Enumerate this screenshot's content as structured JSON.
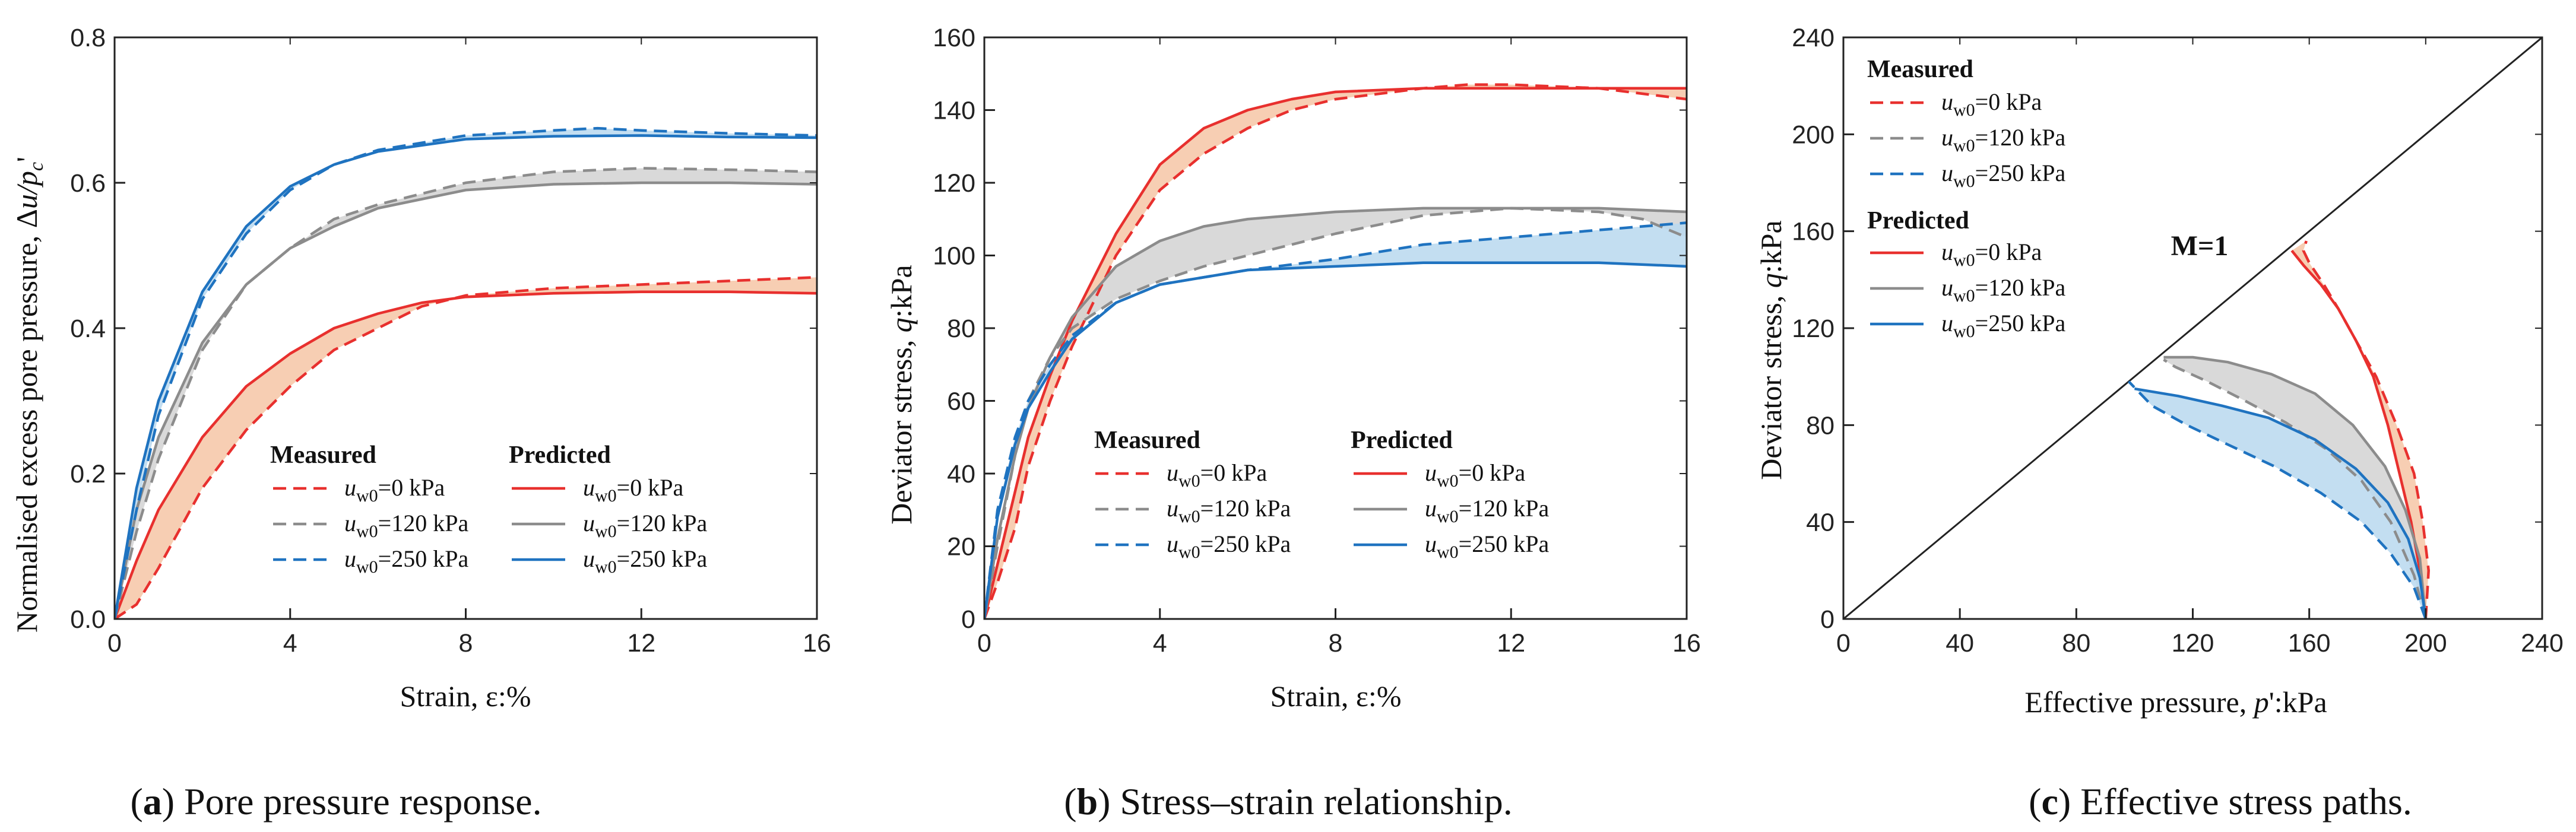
{
  "figure": {
    "colors": {
      "red": "#e8302e",
      "gray": "#8c8c8c",
      "blue": "#1f73c0",
      "redFill": "#f6c6a6",
      "grayFill": "#d2d2d2",
      "blueFill": "#b9d8ee"
    },
    "panels": [
      {
        "id": "a",
        "caption_letter": "a",
        "caption_text": " Pore pressure response.",
        "xlabel": "Strain, ε:%",
        "ylabel_prefix": "Normalised excess pore pressure, Δ",
        "ylabel_var": "u/p",
        "ylabel_sub": "c",
        "ylabel_suffix": "'",
        "legend_headers": [
          "Measured",
          "Predicted"
        ],
        "legend_labels": [
          "=0 kPa",
          "=120 kPa",
          "=250 kPa"
        ],
        "legend_var": "u",
        "legend_sub": "w0"
      },
      {
        "id": "b",
        "caption_letter": "b",
        "caption_text": " Stress–strain relationship.",
        "xlabel": "Strain, ε:%",
        "ylabel_prefix": "Deviator stress, ",
        "ylabel_var": "q",
        "ylabel_sub": "",
        "ylabel_suffix": ":kPa",
        "legend_headers": [
          "Measured",
          "Predicted"
        ],
        "legend_labels": [
          "=0 kPa",
          "=120 kPa",
          "=250 kPa"
        ],
        "legend_var": "u",
        "legend_sub": "w0"
      },
      {
        "id": "c",
        "caption_letter": "c",
        "caption_text": " Effective stress paths.",
        "xlabel_prefix": "Effective pressure, ",
        "xlabel_var": "p",
        "xlabel_suffix": "':kPa",
        "ylabel_prefix": "Deviator stress, ",
        "ylabel_var": "q",
        "ylabel_sub": "",
        "ylabel_suffix": ":kPa",
        "legend_headers": [
          "Measured",
          "Predicted"
        ],
        "legend_labels": [
          "=0 kPa",
          "=120 kPa",
          "=250 kPa"
        ],
        "legend_var": "u",
        "legend_sub": "w0",
        "annotation": "M=1"
      }
    ]
  },
  "chart_data": [
    {
      "type": "line",
      "panel": "a",
      "title": "",
      "xlabel": "Strain, ε:%",
      "ylabel": "Normalised excess pore pressure, Δu/pc'",
      "xlim": [
        0,
        16
      ],
      "ylim": [
        0,
        0.8
      ],
      "xticks": [
        0,
        4,
        8,
        12,
        16
      ],
      "yticks": [
        0.0,
        0.2,
        0.4,
        0.6,
        0.8
      ],
      "xtick_labels": [
        "0",
        "4",
        "8",
        "12",
        "16"
      ],
      "ytick_labels": [
        "0.0",
        "0.2",
        "0.4",
        "0.6",
        "0.8"
      ],
      "series": [
        {
          "name": "Measured uw0=0 kPa",
          "color": "red",
          "dash": true,
          "x": [
            0,
            0.5,
            1,
            2,
            3,
            4,
            5,
            6,
            7,
            8,
            10,
            12,
            14,
            16
          ],
          "y": [
            0,
            0.02,
            0.07,
            0.18,
            0.26,
            0.32,
            0.37,
            0.4,
            0.43,
            0.445,
            0.455,
            0.46,
            0.465,
            0.47
          ]
        },
        {
          "name": "Predicted uw0=0 kPa",
          "color": "red",
          "dash": false,
          "x": [
            0,
            0.5,
            1,
            2,
            3,
            4,
            5,
            6,
            7,
            8,
            10,
            12,
            14,
            16
          ],
          "y": [
            0,
            0.08,
            0.15,
            0.25,
            0.32,
            0.365,
            0.4,
            0.42,
            0.435,
            0.443,
            0.448,
            0.45,
            0.45,
            0.448
          ]
        },
        {
          "name": "Measured uw0=120 kPa",
          "color": "gray",
          "dash": true,
          "x": [
            0,
            0.5,
            1,
            2,
            3,
            4,
            5,
            6,
            8,
            10,
            12,
            14,
            16
          ],
          "y": [
            0,
            0.12,
            0.22,
            0.37,
            0.46,
            0.51,
            0.55,
            0.57,
            0.6,
            0.615,
            0.62,
            0.618,
            0.615
          ]
        },
        {
          "name": "Predicted uw0=120 kPa",
          "color": "gray",
          "dash": false,
          "x": [
            0,
            0.5,
            1,
            2,
            3,
            4,
            5,
            6,
            8,
            10,
            12,
            14,
            16
          ],
          "y": [
            0,
            0.15,
            0.25,
            0.38,
            0.46,
            0.51,
            0.54,
            0.565,
            0.59,
            0.598,
            0.6,
            0.6,
            0.598
          ]
        },
        {
          "name": "Measured uw0=250 kPa",
          "color": "blue",
          "dash": true,
          "x": [
            0,
            0.5,
            1,
            2,
            3,
            4,
            5,
            6,
            8,
            10,
            11,
            12,
            14,
            16
          ],
          "y": [
            0,
            0.15,
            0.28,
            0.44,
            0.53,
            0.59,
            0.625,
            0.645,
            0.665,
            0.672,
            0.675,
            0.672,
            0.668,
            0.665
          ]
        },
        {
          "name": "Predicted uw0=250 kPa",
          "color": "blue",
          "dash": false,
          "x": [
            0,
            0.5,
            1,
            2,
            3,
            4,
            5,
            6,
            8,
            10,
            12,
            14,
            16
          ],
          "y": [
            0,
            0.18,
            0.3,
            0.45,
            0.54,
            0.595,
            0.625,
            0.643,
            0.66,
            0.664,
            0.665,
            0.663,
            0.662
          ]
        }
      ]
    },
    {
      "type": "line",
      "panel": "b",
      "title": "",
      "xlabel": "Strain, ε:%",
      "ylabel": "Deviator stress, q:kPa",
      "xlim": [
        0,
        16
      ],
      "ylim": [
        0,
        160
      ],
      "xticks": [
        0,
        4,
        8,
        12,
        16
      ],
      "yticks": [
        0,
        20,
        40,
        60,
        80,
        100,
        120,
        140,
        160
      ],
      "xtick_labels": [
        "0",
        "4",
        "8",
        "12",
        "16"
      ],
      "ytick_labels": [
        "0",
        "20",
        "40",
        "60",
        "80",
        "100",
        "120",
        "140",
        "160"
      ],
      "series": [
        {
          "name": "Measured uw0=0 kPa",
          "color": "red",
          "dash": true,
          "x": [
            0,
            0.3,
            0.7,
            1,
            1.5,
            2,
            3,
            4,
            5,
            6,
            7,
            8,
            10,
            11,
            12,
            14,
            16
          ],
          "y": [
            0,
            10,
            25,
            42,
            60,
            75,
            100,
            118,
            128,
            135,
            140,
            143,
            146,
            147,
            147,
            146,
            143
          ]
        },
        {
          "name": "Predicted uw0=0 kPa",
          "color": "red",
          "dash": false,
          "x": [
            0,
            0.3,
            0.7,
            1,
            1.5,
            2,
            3,
            4,
            5,
            6,
            7,
            8,
            10,
            12,
            14,
            16
          ],
          "y": [
            0,
            15,
            35,
            50,
            67,
            82,
            106,
            125,
            135,
            140,
            143,
            145,
            146,
            146,
            146,
            146
          ]
        },
        {
          "name": "Measured uw0=120 kPa",
          "color": "gray",
          "dash": true,
          "x": [
            0,
            0.3,
            0.7,
            1,
            1.5,
            2,
            3,
            4,
            5,
            6,
            8,
            10,
            12,
            14,
            15,
            16
          ],
          "y": [
            0,
            20,
            45,
            60,
            72,
            80,
            88,
            93,
            97,
            100,
            106,
            111,
            113,
            112,
            110,
            105
          ]
        },
        {
          "name": "Predicted uw0=120 kPa",
          "color": "gray",
          "dash": false,
          "x": [
            0,
            0.3,
            0.7,
            1,
            1.5,
            2,
            3,
            4,
            5,
            6,
            8,
            10,
            12,
            14,
            16
          ],
          "y": [
            0,
            22,
            45,
            58,
            72,
            83,
            97,
            104,
            108,
            110,
            112,
            113,
            113,
            113,
            112
          ]
        },
        {
          "name": "Measured uw0=250 kPa",
          "color": "blue",
          "dash": true,
          "x": [
            0,
            0.3,
            0.7,
            1,
            1.5,
            2,
            3,
            4,
            5,
            6,
            8,
            10,
            12,
            14,
            16
          ],
          "y": [
            0,
            30,
            50,
            60,
            70,
            78,
            87,
            92,
            94,
            96,
            99,
            103,
            105,
            107,
            109
          ]
        },
        {
          "name": "Predicted uw0=250 kPa",
          "color": "blue",
          "dash": false,
          "x": [
            0,
            0.3,
            0.7,
            1,
            1.5,
            2,
            3,
            4,
            5,
            6,
            8,
            10,
            12,
            14,
            16
          ],
          "y": [
            0,
            28,
            48,
            58,
            68,
            77,
            87,
            92,
            94,
            96,
            97,
            98,
            98,
            98,
            97
          ]
        }
      ]
    },
    {
      "type": "line",
      "panel": "c",
      "title": "",
      "xlabel": "Effective pressure, p':kPa",
      "ylabel": "Deviator stress, q:kPa",
      "xlim": [
        0,
        240
      ],
      "ylim": [
        0,
        240
      ],
      "xticks": [
        0,
        40,
        80,
        120,
        160,
        200,
        240
      ],
      "yticks": [
        0,
        40,
        80,
        120,
        160,
        200,
        240
      ],
      "xtick_labels": [
        "0",
        "40",
        "80",
        "120",
        "160",
        "200",
        "240"
      ],
      "ytick_labels": [
        "0",
        "40",
        "80",
        "120",
        "160",
        "200",
        "240"
      ],
      "critical_state_line": {
        "label": "M=1",
        "x": [
          0,
          240
        ],
        "y": [
          0,
          240
        ]
      },
      "series": [
        {
          "name": "Measured uw0=0 kPa",
          "color": "red",
          "dash": true,
          "x": [
            200,
            201,
            199,
            196,
            190,
            183,
            176,
            170,
            165,
            160,
            158,
            159
          ],
          "y": [
            0,
            20,
            40,
            60,
            80,
            100,
            115,
            128,
            138,
            147,
            152,
            156
          ]
        },
        {
          "name": "Predicted uw0=0 kPa",
          "color": "red",
          "dash": false,
          "x": [
            200,
            198,
            195,
            191,
            187,
            182,
            176,
            170,
            164,
            158,
            154
          ],
          "y": [
            0,
            20,
            40,
            60,
            80,
            100,
            115,
            128,
            138,
            146,
            152
          ]
        },
        {
          "name": "Measured uw0=120 kPa",
          "color": "gray",
          "dash": true,
          "x": [
            200,
            196,
            188,
            178,
            166,
            152,
            138,
            125,
            114,
            110
          ],
          "y": [
            0,
            18,
            40,
            57,
            70,
            81,
            90,
            98,
            104,
            107
          ]
        },
        {
          "name": "Predicted uw0=120 kPa",
          "color": "gray",
          "dash": false,
          "x": [
            200,
            198,
            193,
            186,
            175,
            162,
            147,
            132,
            120,
            110
          ],
          "y": [
            0,
            25,
            45,
            63,
            80,
            93,
            101,
            106,
            108,
            108
          ]
        },
        {
          "name": "Measured uw0=250 kPa",
          "color": "blue",
          "dash": true,
          "x": [
            200,
            196,
            188,
            178,
            164,
            148,
            132,
            118,
            106,
            98
          ],
          "y": [
            0,
            13,
            27,
            40,
            52,
            63,
            72,
            80,
            88,
            98
          ]
        },
        {
          "name": "Predicted uw0=250 kPa",
          "color": "blue",
          "dash": false,
          "x": [
            200,
            198,
            194,
            187,
            176,
            162,
            146,
            130,
            115,
            100
          ],
          "y": [
            0,
            17,
            33,
            48,
            62,
            74,
            83,
            88,
            92,
            95
          ]
        }
      ]
    }
  ]
}
